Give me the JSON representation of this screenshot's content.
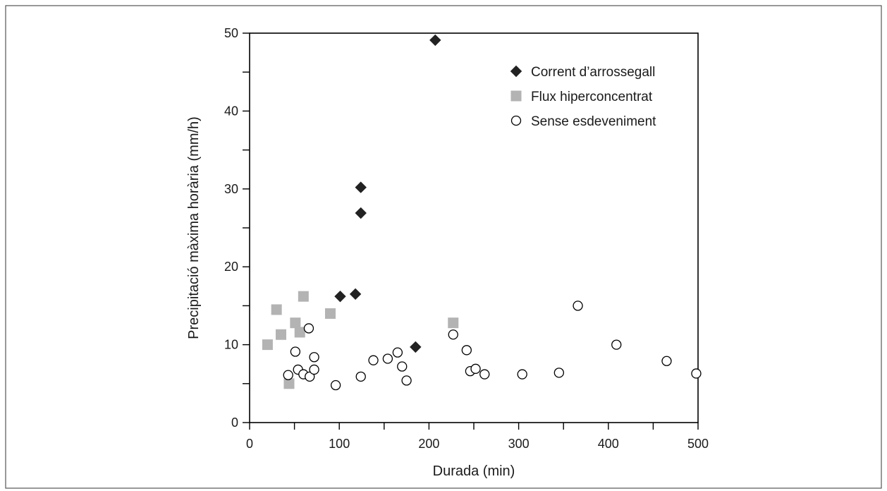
{
  "chart_data": {
    "type": "scatter",
    "title": "",
    "xlabel": "Durada (min)",
    "ylabel": "Precipitació màxima horària (mm/h)",
    "xlim": [
      0,
      500
    ],
    "ylim": [
      0,
      50
    ],
    "x_ticks": [
      0,
      100,
      200,
      300,
      400,
      500
    ],
    "y_ticks": [
      0,
      10,
      20,
      30,
      40,
      50
    ],
    "y_minor_ticks": [
      5,
      15,
      25,
      35,
      45
    ],
    "x_minor_ticks": [
      50,
      150,
      250,
      350,
      450
    ],
    "grid": false,
    "legend_position": "top-right",
    "series": [
      {
        "name": "Corrent d’arrossegall",
        "marker": "diamond",
        "color": "#222222",
        "points": [
          {
            "x": 207,
            "y": 49.1
          },
          {
            "x": 124,
            "y": 30.2
          },
          {
            "x": 124,
            "y": 26.9
          },
          {
            "x": 101,
            "y": 16.2
          },
          {
            "x": 118,
            "y": 16.5
          },
          {
            "x": 185,
            "y": 9.7
          }
        ]
      },
      {
        "name": "Flux hiperconcentrat",
        "marker": "square",
        "color": "#b3b3b3",
        "points": [
          {
            "x": 20,
            "y": 10.0
          },
          {
            "x": 30,
            "y": 14.5
          },
          {
            "x": 35,
            "y": 11.3
          },
          {
            "x": 44,
            "y": 5.0
          },
          {
            "x": 51,
            "y": 12.8
          },
          {
            "x": 56,
            "y": 11.6
          },
          {
            "x": 60,
            "y": 16.2
          },
          {
            "x": 90,
            "y": 14.0
          },
          {
            "x": 227,
            "y": 12.8
          }
        ]
      },
      {
        "name": "Sense esdeveniment",
        "marker": "circle",
        "color": "#000000",
        "points": [
          {
            "x": 43,
            "y": 6.1
          },
          {
            "x": 51,
            "y": 9.1
          },
          {
            "x": 54,
            "y": 6.8
          },
          {
            "x": 60,
            "y": 6.2
          },
          {
            "x": 66,
            "y": 12.1
          },
          {
            "x": 67,
            "y": 5.9
          },
          {
            "x": 72,
            "y": 6.8
          },
          {
            "x": 72,
            "y": 8.4
          },
          {
            "x": 96,
            "y": 4.8
          },
          {
            "x": 124,
            "y": 5.9
          },
          {
            "x": 138,
            "y": 8.0
          },
          {
            "x": 154,
            "y": 8.2
          },
          {
            "x": 165,
            "y": 9.0
          },
          {
            "x": 170,
            "y": 7.2
          },
          {
            "x": 175,
            "y": 5.4
          },
          {
            "x": 227,
            "y": 11.3
          },
          {
            "x": 242,
            "y": 9.3
          },
          {
            "x": 246,
            "y": 6.6
          },
          {
            "x": 252,
            "y": 6.9
          },
          {
            "x": 262,
            "y": 6.2
          },
          {
            "x": 304,
            "y": 6.2
          },
          {
            "x": 345,
            "y": 6.4
          },
          {
            "x": 366,
            "y": 15.0
          },
          {
            "x": 409,
            "y": 10.0
          },
          {
            "x": 465,
            "y": 7.9
          },
          {
            "x": 498,
            "y": 6.3
          }
        ]
      }
    ]
  }
}
